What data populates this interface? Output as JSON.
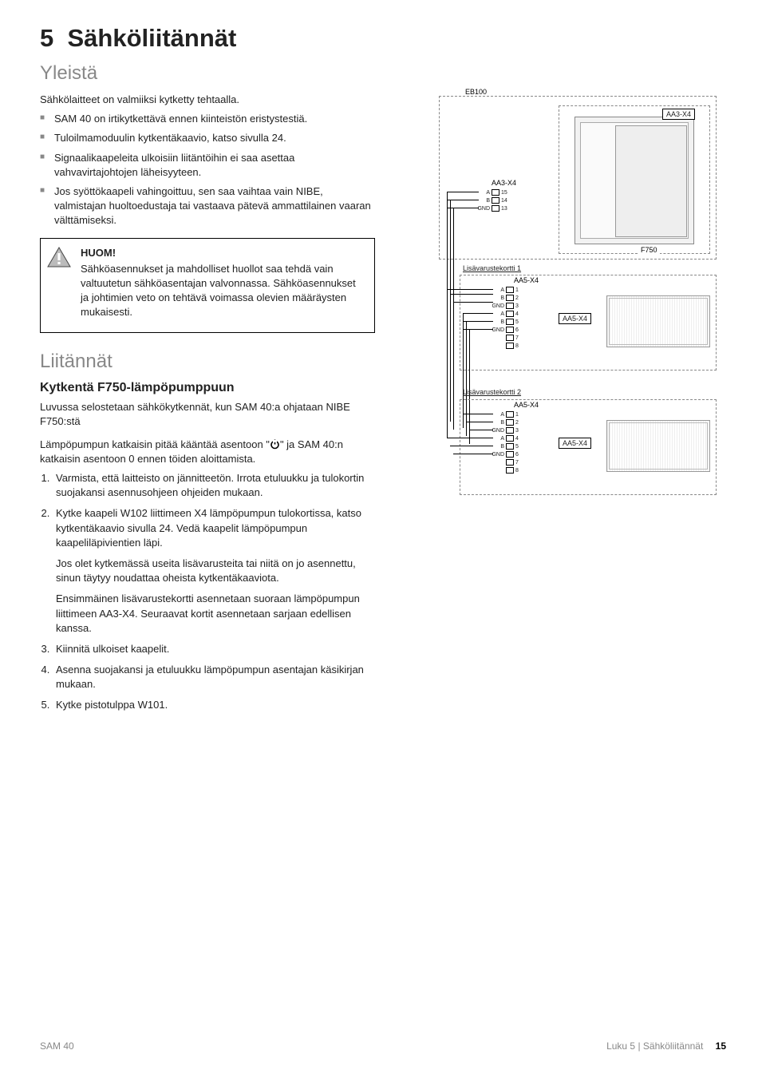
{
  "chapter": {
    "number": "5",
    "title": "Sähköliitännät"
  },
  "yleista": {
    "heading": "Yleistä",
    "intro": "Sähkölaitteet on valmiiksi kytketty tehtaalla.",
    "bullets": [
      "SAM 40 on irtikytkettävä ennen kiinteistön eristystestiä.",
      "Tuloilmamoduulin kytkentäkaavio, katso sivulla 24.",
      "Signaalikaapeleita ulkoisiin liitäntöihin ei saa asettaa vahvavirtajohtojen läheisyyteen.",
      "Jos syöttökaapeli vahingoittuu, sen saa vaihtaa vain NIBE, valmistajan huoltoedustaja tai vastaava pätevä ammattilainen vaaran välttämiseksi."
    ]
  },
  "note": {
    "title": "HUOM!",
    "body": "Sähköasennukset ja mahdolliset huollot saa tehdä vain valtuutetun sähköasentajan valvonnassa. Sähköasennukset ja johtimien veto on tehtävä voimassa olevien määräysten mukaisesti."
  },
  "liitannat": {
    "heading": "Liitännät",
    "sub_heading": "Kytkentä F750-lämpöpumppuun",
    "p1": "Luvussa selostetaan sähkökytkennät, kun SAM 40:a ohjataan NIBE F750:stä",
    "p2a": "Lämpöpumpun katkaisin pitää kääntää asentoon \"",
    "p2b": "\" ja SAM 40:n katkaisin asentoon 0 ennen töiden aloittamista.",
    "steps": [
      "Varmista, että laitteisto on jännitteetön. Irrota etuluukku ja tulokortin suojakansi asennusohjeen ohjeiden mukaan.",
      "Kytke kaapeli W102 liittimeen X4 lämpöpumpun tulokortissa, katso kytkentäkaavio sivulla 24. Vedä kaapelit lämpöpumpun kaapeliläpivientien läpi.",
      "Kiinnitä ulkoiset kaapelit.",
      "Asenna suojakansi ja etuluukku lämpöpumpun asentajan käsikirjan mukaan.",
      "Kytke pistotulppa W101."
    ],
    "step2_extra1": "Jos olet kytkemässä useita lisävarusteita tai niitä on jo asennettu, sinun täytyy noudattaa oheista kytkentäkaaviota.",
    "step2_extra2": "Ensimmäinen lisävarustekortti asennetaan suoraan lämpöpumpun liittimeen AA3-X4. Seuraavat kortit asennetaan sarjaan edellisen kanssa."
  },
  "diagram": {
    "eb100": "EB100",
    "aa3_x4_box": "AA3-X4",
    "aa3_x4": "AA3-X4",
    "f750": "F750",
    "card1": "Lisävarustekortti 1",
    "card2": "Lisävarustekortti 2",
    "aa5_x4": "AA5-X4",
    "pins_top": [
      {
        "label": "A",
        "num": "15"
      },
      {
        "label": "B",
        "num": "14"
      },
      {
        "label": "GND",
        "num": "13"
      }
    ],
    "pins_card": [
      {
        "label": "A",
        "num": "1"
      },
      {
        "label": "B",
        "num": "2"
      },
      {
        "label": "GND",
        "num": "3"
      },
      {
        "label": "A",
        "num": "4"
      },
      {
        "label": "B",
        "num": "5"
      },
      {
        "label": "GND",
        "num": "6"
      },
      {
        "label": "",
        "num": "7"
      },
      {
        "label": "",
        "num": "8"
      }
    ]
  },
  "footer": {
    "left": "SAM 40",
    "right_chapter": "Luku 5 |",
    "right_section": "Sähköliitännät",
    "page": "15"
  },
  "colors": {
    "text": "#222222",
    "grey": "#888888",
    "border": "#000000",
    "device": "#f2f2f2"
  }
}
